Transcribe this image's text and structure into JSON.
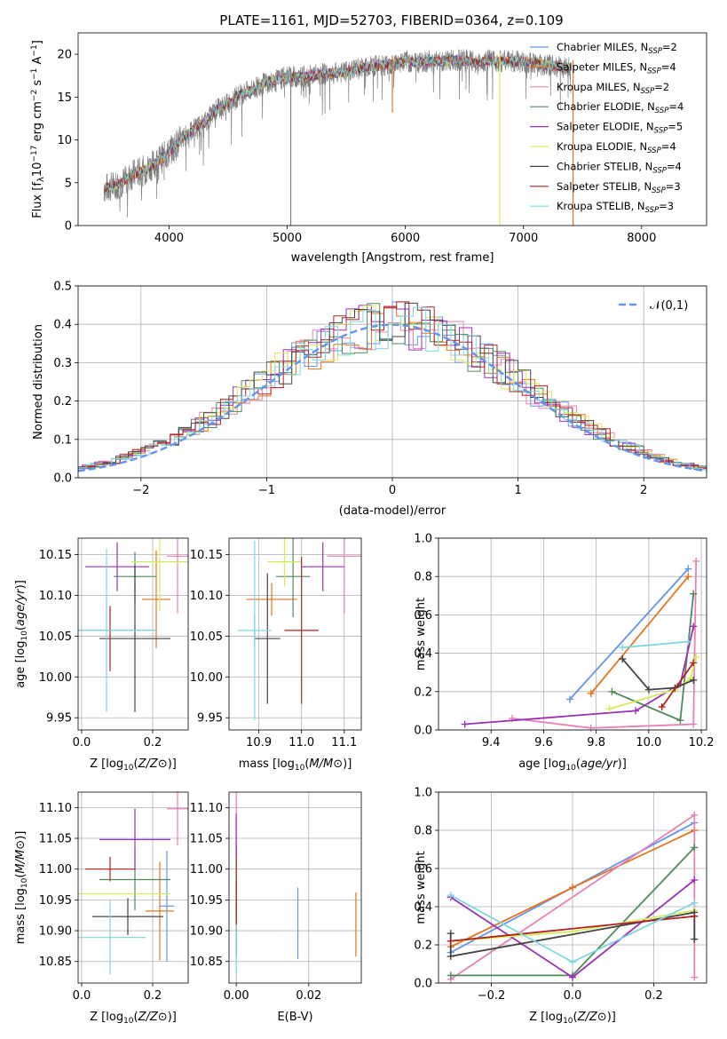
{
  "figure_title": "PLATE=1161, MJD=52703, FIBERID=0364, z=0.109",
  "palette": [
    "#6495ed",
    "#e8731a",
    "#e882b4",
    "#4f8a5c",
    "#9b30b8",
    "#d4ec5a",
    "#444444",
    "#b22222",
    "#7fd8e0"
  ],
  "chart_data": [
    {
      "id": "spectrum",
      "type": "line",
      "xlabel": "wavelength [Angstrom, rest frame]",
      "ylabel_parts": [
        "Flux [f",
        "λ",
        "10",
        "−17",
        " erg cm",
        "−2",
        " s",
        "−1",
        " A",
        "−1",
        "]"
      ],
      "xlim": [
        3230,
        8550
      ],
      "ylim": [
        0,
        22.5
      ],
      "xticks": [
        4000,
        5000,
        6000,
        7000,
        8000
      ],
      "yticks": [
        0,
        5,
        10,
        15,
        20
      ],
      "legend_location": "upper right",
      "series": [
        {
          "name": "Chabrier MILES, N",
          "sub": "SSP",
          "suffix": "=2",
          "color": "#6495ed"
        },
        {
          "name": "Salpeter MILES, N",
          "sub": "SSP",
          "suffix": "=4",
          "color": "#e8731a"
        },
        {
          "name": "Kroupa MILES, N",
          "sub": "SSP",
          "suffix": "=2",
          "color": "#e882b4"
        },
        {
          "name": "Chabrier ELODIE, N",
          "sub": "SSP",
          "suffix": "=4",
          "color": "#4f8a5c"
        },
        {
          "name": "Salpeter ELODIE, N",
          "sub": "SSP",
          "suffix": "=5",
          "color": "#9b30b8"
        },
        {
          "name": "Kroupa ELODIE, N",
          "sub": "SSP",
          "suffix": "=4",
          "color": "#d4ec5a"
        },
        {
          "name": "Chabrier STELIB, N",
          "sub": "SSP",
          "suffix": "=4",
          "color": "#444444"
        },
        {
          "name": "Salpeter STELIB, N",
          "sub": "SSP",
          "suffix": "=3",
          "color": "#b22222"
        },
        {
          "name": "Kroupa STELIB, N",
          "sub": "SSP",
          "suffix": "=3",
          "color": "#7fd8e0"
        }
      ],
      "data_envelope": {
        "wavelength": [
          3450,
          3500,
          3600,
          3700,
          3800,
          3900,
          4000,
          4100,
          4200,
          4300,
          4400,
          4500,
          4600,
          4700,
          4800,
          4900,
          5000,
          5100,
          5200,
          5300,
          5400,
          5500,
          5600,
          5700,
          5800,
          5900,
          6000,
          6100,
          6200,
          6300,
          6400,
          6500,
          6600,
          6700,
          6800,
          6900,
          7000,
          7100,
          7200,
          7300,
          7400
        ],
        "flux": [
          4.3,
          4.5,
          5.0,
          6.0,
          6.5,
          7.5,
          8.5,
          10.0,
          11.2,
          12.0,
          13.5,
          14.3,
          15.3,
          15.8,
          16.6,
          16.9,
          17.4,
          17.3,
          17.5,
          17.7,
          17.8,
          17.9,
          18.3,
          18.6,
          18.7,
          18.9,
          19.2,
          19.0,
          19.2,
          19.2,
          19.3,
          19.3,
          19.0,
          19.3,
          19.2,
          19.2,
          19.1,
          19.0,
          18.7,
          18.6,
          18.3
        ]
      },
      "spikes": [
        {
          "x": 5030,
          "y": 0
        },
        {
          "x": 5890,
          "y": 13.2
        },
        {
          "x": 6800,
          "y": 0
        },
        {
          "x": 7420,
          "y": 0
        }
      ]
    },
    {
      "id": "residuals",
      "type": "histogram",
      "xlabel": "(data-model)/error",
      "ylabel": "Normed distribution",
      "xlim": [
        -2.5,
        2.5
      ],
      "ylim": [
        0,
        0.5
      ],
      "xticks": [
        -2,
        -1,
        0,
        1,
        2
      ],
      "yticks": [
        0.0,
        0.1,
        0.2,
        0.3,
        0.4,
        0.5
      ],
      "reference": {
        "label": "𝒩(0,1)",
        "color": "#6495ed",
        "style": "dashed"
      }
    },
    {
      "id": "age_vs_z",
      "type": "scatter",
      "xlabel": "Z [log10(Z/Z⊙)]",
      "ylabel": "age  [log10(age/yr)]",
      "xlim": [
        -0.01,
        0.3
      ],
      "ylim": [
        9.935,
        10.17
      ],
      "xticks": [
        0.0,
        0.2
      ],
      "yticks": [
        9.95,
        10.0,
        10.05,
        10.1,
        10.15
      ],
      "points": [
        {
          "series": 0,
          "x": 0.08,
          "xerr": 0.13,
          "y": 10.057,
          "yerr": 0.0
        },
        {
          "series": 1,
          "x": 0.21,
          "xerr": 0.04,
          "y": 10.095,
          "yerr": 0.06
        },
        {
          "series": 2,
          "x": 0.27,
          "xerr": 0.03,
          "y": 10.148,
          "yerr": 0.07
        },
        {
          "series": 3,
          "x": 0.15,
          "xerr": 0.06,
          "y": 10.123,
          "yerr": 0.03
        },
        {
          "series": 4,
          "x": 0.1,
          "xerr": 0.09,
          "y": 10.135,
          "yerr": 0.03
        },
        {
          "series": 5,
          "x": 0.22,
          "xerr": 0.08,
          "y": 10.141,
          "yerr": 0.06
        },
        {
          "series": 6,
          "x": 0.15,
          "xerr": 0.1,
          "y": 10.047,
          "yerr": 0.09
        },
        {
          "series": 7,
          "x": 0.08,
          "xerr": 0.0,
          "y": 10.047,
          "yerr": 0.04
        },
        {
          "series": 8,
          "x": 0.07,
          "xerr": 0.14,
          "y": 10.057,
          "yerr": 0.1
        }
      ]
    },
    {
      "id": "age_vs_mass",
      "type": "scatter",
      "xlabel": "mass [log10(M/M⊙)]",
      "ylabel": "",
      "xlim": [
        10.83,
        11.14
      ],
      "ylim": [
        9.935,
        10.17
      ],
      "xticks": [
        10.9,
        11.0,
        11.1
      ],
      "yticks": [
        9.95,
        10.0,
        10.05,
        10.1,
        10.15
      ],
      "points": [
        {
          "series": 0,
          "x": 10.89,
          "xerr": 0.0,
          "y": 10.057,
          "yerr": 0.02
        },
        {
          "series": 1,
          "x": 10.93,
          "xerr": 0.06,
          "y": 10.095,
          "yerr": 0.02
        },
        {
          "series": 2,
          "x": 11.1,
          "xerr": 0.04,
          "y": 10.148,
          "yerr": 0.07
        },
        {
          "series": 3,
          "x": 10.98,
          "xerr": 0.04,
          "y": 10.123,
          "yerr": 0.05
        },
        {
          "series": 4,
          "x": 11.05,
          "xerr": 0.05,
          "y": 10.135,
          "yerr": 0.03
        },
        {
          "series": 5,
          "x": 10.96,
          "xerr": 0.04,
          "y": 10.141,
          "yerr": 0.03
        },
        {
          "series": 6,
          "x": 10.92,
          "xerr": 0.03,
          "y": 10.047,
          "yerr": 0.08
        },
        {
          "series": 7,
          "x": 11.0,
          "xerr": 0.04,
          "y": 10.057,
          "yerr": 0.09
        },
        {
          "series": 8,
          "x": 10.89,
          "xerr": 0.04,
          "y": 10.057,
          "yerr": 0.11
        }
      ]
    },
    {
      "id": "mass_weight_vs_age",
      "type": "line",
      "xlabel": "age  [log10(age/yr)]",
      "ylabel": "mass weight",
      "xlim": [
        9.2,
        10.22
      ],
      "ylim": [
        0,
        1
      ],
      "xticks": [
        9.4,
        9.6,
        9.8,
        10.0,
        10.2
      ],
      "yticks": [
        0.0,
        0.2,
        0.4,
        0.6,
        0.8,
        1.0
      ],
      "series": [
        {
          "series": 0,
          "x": [
            9.7,
            10.15
          ],
          "y": [
            0.16,
            0.84
          ]
        },
        {
          "series": 1,
          "x": [
            9.78,
            10.15
          ],
          "y": [
            0.19,
            0.8
          ]
        },
        {
          "series": 2,
          "x": [
            9.48,
            9.78,
            10.17,
            10.18
          ],
          "y": [
            0.06,
            0.01,
            0.03,
            0.88
          ]
        },
        {
          "series": 3,
          "x": [
            9.86,
            10.12,
            10.17
          ],
          "y": [
            0.2,
            0.05,
            0.71
          ]
        },
        {
          "series": 4,
          "x": [
            9.3,
            9.95,
            10.12,
            10.17
          ],
          "y": [
            0.03,
            0.1,
            0.24,
            0.54
          ]
        },
        {
          "series": 5,
          "x": [
            9.85,
            10.1,
            10.16,
            10.18
          ],
          "y": [
            0.11,
            0.21,
            0.27,
            0.38
          ]
        },
        {
          "series": 6,
          "x": [
            9.9,
            10.0,
            10.1,
            10.17
          ],
          "y": [
            0.37,
            0.21,
            0.22,
            0.26
          ]
        },
        {
          "series": 7,
          "x": [
            10.05,
            10.17
          ],
          "y": [
            0.12,
            0.35
          ]
        },
        {
          "series": 8,
          "x": [
            9.9,
            10.15
          ],
          "y": [
            0.43,
            0.46
          ]
        }
      ]
    },
    {
      "id": "mass_vs_z",
      "type": "scatter",
      "xlabel": "Z [log10(Z/Z⊙)]",
      "ylabel": "mass [log10(M/M⊙)]",
      "xlim": [
        -0.01,
        0.3
      ],
      "ylim": [
        10.815,
        11.125
      ],
      "xticks": [
        0.0,
        0.2
      ],
      "yticks": [
        10.85,
        10.9,
        10.95,
        11.0,
        11.05,
        11.1
      ],
      "points": [
        {
          "series": 0,
          "x": 0.24,
          "xerr": 0.02,
          "y": 10.94,
          "yerr": 0.09
        },
        {
          "series": 1,
          "x": 0.22,
          "xerr": 0.04,
          "y": 10.932,
          "yerr": 0.08
        },
        {
          "series": 2,
          "x": 0.27,
          "xerr": 0.03,
          "y": 11.098,
          "yerr": 0.06
        },
        {
          "series": 3,
          "x": 0.15,
          "xerr": 0.1,
          "y": 10.983,
          "yerr": 0.05
        },
        {
          "series": 4,
          "x": 0.15,
          "xerr": 0.1,
          "y": 11.048,
          "yerr": 0.05
        },
        {
          "series": 5,
          "x": 0.12,
          "xerr": 0.13,
          "y": 10.96,
          "yerr": 0.0
        },
        {
          "series": 6,
          "x": 0.13,
          "xerr": 0.1,
          "y": 10.923,
          "yerr": 0.03
        },
        {
          "series": 7,
          "x": 0.08,
          "xerr": 0.07,
          "y": 11.0,
          "yerr": 0.02
        },
        {
          "series": 8,
          "x": 0.08,
          "xerr": 0.1,
          "y": 10.889,
          "yerr": 0.06
        }
      ]
    },
    {
      "id": "mass_vs_ebv",
      "type": "scatter",
      "xlabel": "E(B-V)",
      "ylabel": "",
      "xlim": [
        -0.002,
        0.0345
      ],
      "ylim": [
        10.815,
        11.125
      ],
      "xticks": [
        0.0,
        0.02
      ],
      "yticks": [
        10.85,
        10.9,
        10.95,
        11.0,
        11.05,
        11.1
      ],
      "points": [
        {
          "series": 0,
          "x": 0.017,
          "y": 10.912,
          "yerr": 0.058
        },
        {
          "series": 1,
          "x": 0.033,
          "y": 10.91,
          "yerr": 0.052
        },
        {
          "series": 2,
          "x": 0.0,
          "y": 11.07,
          "yerr": 0.06
        },
        {
          "series": 3,
          "x": 0.0,
          "y": 10.98,
          "yerr": 0.06
        },
        {
          "series": 4,
          "x": 0.0,
          "y": 11.03,
          "yerr": 0.06
        },
        {
          "series": 5,
          "x": 0.0,
          "y": 10.96,
          "yerr": 0.06
        },
        {
          "series": 6,
          "x": 0.0,
          "y": 10.92,
          "yerr": 0.06
        },
        {
          "series": 7,
          "x": 0.0,
          "y": 10.96,
          "yerr": 0.06
        },
        {
          "series": 8,
          "x": 0.0,
          "y": 10.87,
          "yerr": 0.04
        }
      ]
    },
    {
      "id": "mass_weight_vs_z",
      "type": "line",
      "xlabel": "Z [log10(Z/Z⊙)]",
      "ylabel": "mass weight",
      "xlim": [
        -0.33,
        0.33
      ],
      "ylim": [
        0,
        1
      ],
      "xticks": [
        -0.2,
        0.0,
        0.2
      ],
      "yticks": [
        0.0,
        0.2,
        0.4,
        0.6,
        0.8,
        1.0
      ],
      "series": [
        {
          "series": 0,
          "x": [
            -0.3,
            0.0,
            0.3
          ],
          "y": [
            0.16,
            0.5,
            0.84
          ]
        },
        {
          "series": 1,
          "x": [
            -0.3,
            0.0,
            0.3
          ],
          "y": [
            0.19,
            0.5,
            0.8
          ]
        },
        {
          "series": 2,
          "x": [
            -0.3,
            0.3,
            0.3
          ],
          "y": [
            0.02,
            0.88,
            0.03
          ]
        },
        {
          "series": 3,
          "x": [
            -0.3,
            0.0,
            0.3
          ],
          "y": [
            0.04,
            0.04,
            0.71
          ]
        },
        {
          "series": 4,
          "x": [
            -0.3,
            0.0,
            0.3
          ],
          "y": [
            0.45,
            0.03,
            0.54
          ]
        },
        {
          "series": 5,
          "x": [
            -0.3,
            0.0,
            0.3
          ],
          "y": [
            0.22,
            0.27,
            0.38
          ]
        },
        {
          "series": 6,
          "x": [
            -0.3,
            -0.3,
            0.3,
            0.3
          ],
          "y": [
            0.26,
            0.14,
            0.37,
            0.23
          ]
        },
        {
          "series": 7,
          "x": [
            -0.3,
            0.3
          ],
          "y": [
            0.22,
            0.35
          ]
        },
        {
          "series": 8,
          "x": [
            -0.3,
            0.0,
            0.3
          ],
          "y": [
            0.46,
            0.11,
            0.42
          ]
        }
      ]
    }
  ]
}
